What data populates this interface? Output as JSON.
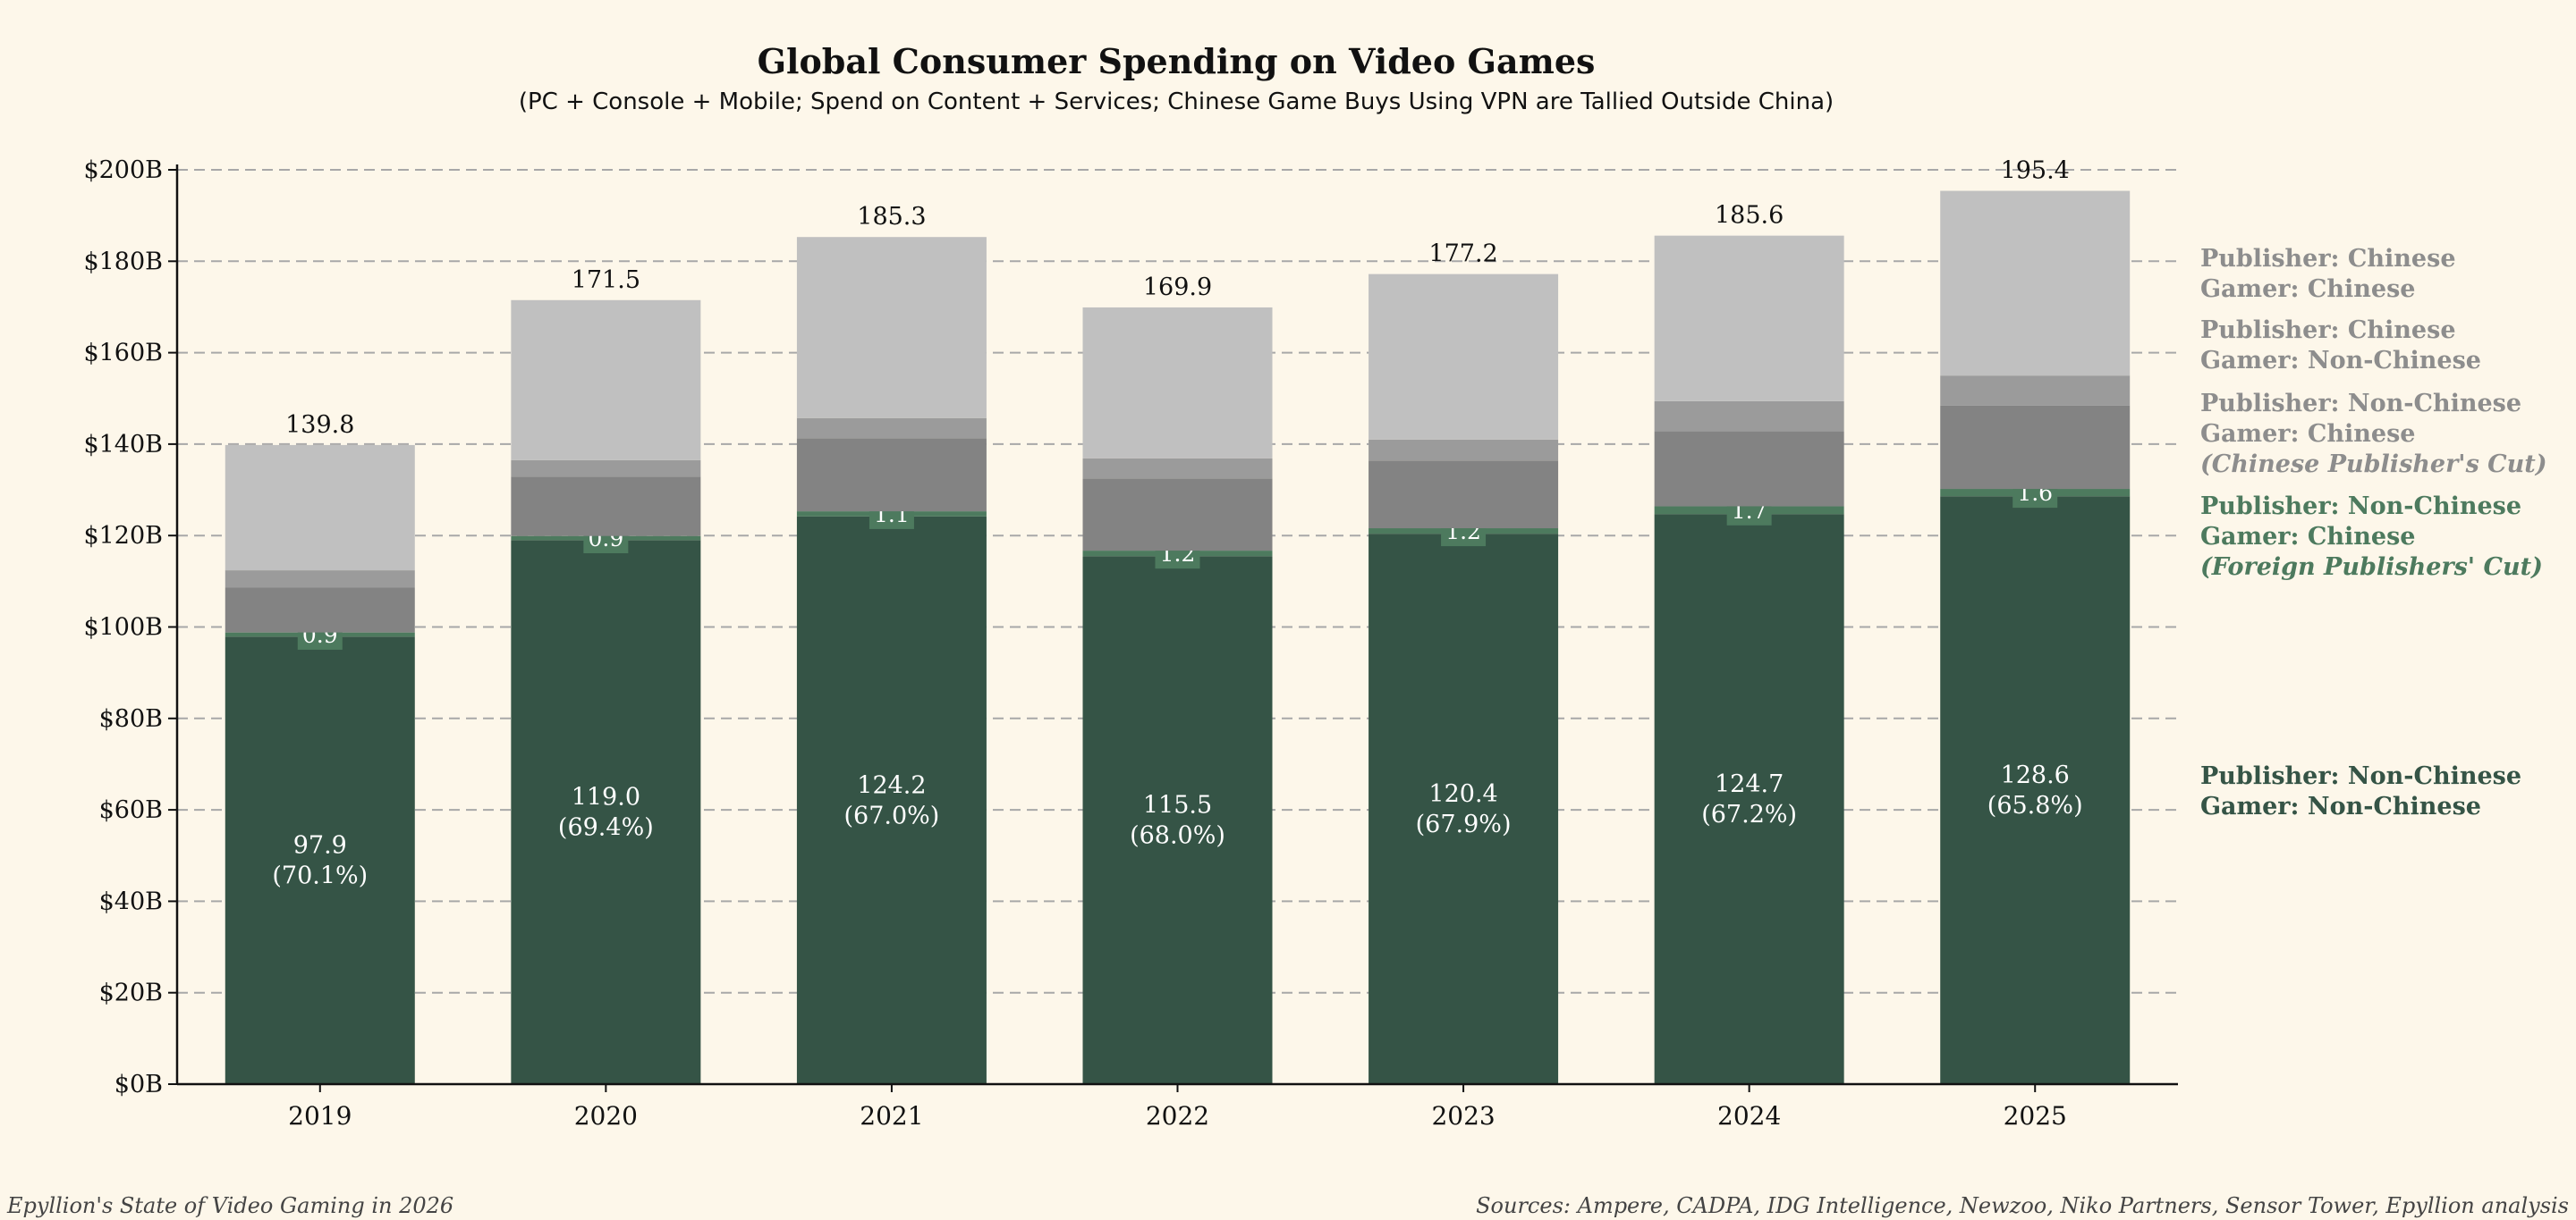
{
  "chart_data": {
    "type": "bar",
    "stacked": true,
    "title": "Global Consumer Spending on Video Games",
    "subtitle": "(PC + Console + Mobile; Spend on Content + Services; Chinese Game Buys Using VPN are Tallied Outside China)",
    "categories": [
      "2019",
      "2020",
      "2021",
      "2022",
      "2023",
      "2024",
      "2025"
    ],
    "ylim": [
      0,
      200
    ],
    "y_ticks": [
      "$0B",
      "$20B",
      "$40B",
      "$60B",
      "$80B",
      "$100B",
      "$120B",
      "$140B",
      "$160B",
      "$180B",
      "$200B"
    ],
    "grid": "horizontal dashed",
    "legend_position": "right",
    "totals": [
      "139.8",
      "171.5",
      "185.3",
      "169.9",
      "177.2",
      "185.6",
      "195.4"
    ],
    "series": [
      {
        "name": "Publisher: Non-Chinese / Gamer: Non-Chinese",
        "color": "#355446",
        "values": [
          97.9,
          119.0,
          124.2,
          115.5,
          120.4,
          124.7,
          128.6
        ],
        "labels": [
          "97.9",
          "119.0",
          "124.2",
          "115.5",
          "120.4",
          "124.7",
          "128.6"
        ],
        "share_labels": [
          "(70.1%)",
          "(69.4%)",
          "(67.0%)",
          "(68.0%)",
          "(67.9%)",
          "(67.2%)",
          "(65.8%)"
        ]
      },
      {
        "name": "Publisher: Non-Chinese / Gamer: Chinese (Foreign Publishers' Cut)",
        "color": "#4d7a5e",
        "values": [
          0.9,
          0.9,
          1.1,
          1.2,
          1.2,
          1.7,
          1.6
        ],
        "labels": [
          "0.9",
          "0.9",
          "1.1",
          "1.2",
          "1.2",
          "1.7",
          "1.6"
        ]
      },
      {
        "name": "Publisher: Non-Chinese / Gamer: Chinese (Chinese Publisher's Cut)",
        "color": "#838383",
        "values": [
          9.8,
          13.0,
          16.0,
          15.8,
          14.8,
          16.4,
          18.2
        ]
      },
      {
        "name": "Publisher: Chinese / Gamer: Non-Chinese",
        "color": "#9b9b9b",
        "values": [
          3.8,
          3.6,
          4.4,
          4.4,
          4.6,
          6.6,
          6.6
        ]
      },
      {
        "name": "Publisher: Chinese / Gamer: Chinese",
        "color": "#c0c0c0",
        "values": [
          27.4,
          35.0,
          39.6,
          33.0,
          36.2,
          36.2,
          40.4
        ]
      }
    ],
    "legend": [
      {
        "lines": [
          "Publisher: Chinese",
          "Gamer: Chinese"
        ],
        "color": "#8d8d8d"
      },
      {
        "lines": [
          "Publisher: Chinese",
          "Gamer: Non-Chinese"
        ],
        "color": "#8d8d8d"
      },
      {
        "lines": [
          "Publisher: Non-Chinese",
          "Gamer: Chinese",
          "(Chinese Publisher's Cut)"
        ],
        "color": "#8d8d8d"
      },
      {
        "lines": [
          "Publisher: Non-Chinese",
          "Gamer: Chinese",
          "(Foreign Publishers' Cut)"
        ],
        "color": "#4d7a5e"
      },
      {
        "lines": [
          "Publisher: Non-Chinese",
          "Gamer: Non-Chinese"
        ],
        "color": "#355446"
      }
    ]
  },
  "footer": {
    "left": "Epyllion's State of Video Gaming in 2026",
    "right": "Sources: Ampere, CADPA, IDG Intelligence, Newzoo, Niko Partners, Sensor Tower, Epyllion analysis"
  }
}
